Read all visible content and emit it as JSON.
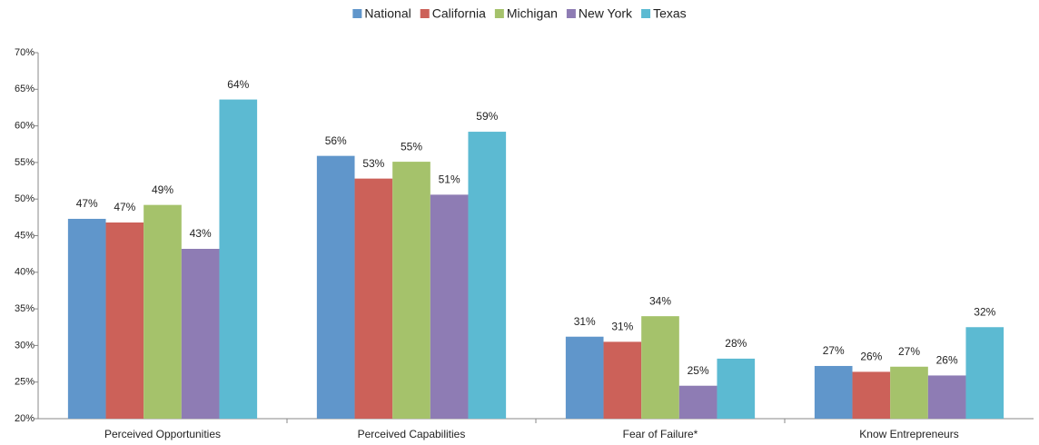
{
  "chart_data": {
    "type": "bar",
    "categories": [
      "Perceived Opportunities",
      "Perceived Capabilities",
      "Fear of Failure*",
      "Know Entrepreneurs"
    ],
    "series": [
      {
        "name": "National",
        "color": "#6096cb",
        "values": [
          47.3,
          55.9,
          31.2,
          27.2
        ],
        "value_labels": [
          "47%",
          "56%",
          "31%",
          "27%"
        ]
      },
      {
        "name": "California",
        "color": "#cc6159",
        "values": [
          46.8,
          52.8,
          30.5,
          26.4
        ],
        "value_labels": [
          "47%",
          "53%",
          "31%",
          "26%"
        ]
      },
      {
        "name": "Michigan",
        "color": "#a5c26b",
        "values": [
          49.2,
          55.1,
          34.0,
          27.1
        ],
        "value_labels": [
          "49%",
          "55%",
          "34%",
          "27%"
        ]
      },
      {
        "name": "New York",
        "color": "#8e7cb4",
        "values": [
          43.2,
          50.6,
          24.5,
          25.9
        ],
        "value_labels": [
          "43%",
          "51%",
          "25%",
          "26%"
        ]
      },
      {
        "name": "Texas",
        "color": "#5cbad2",
        "values": [
          63.6,
          59.2,
          28.2,
          32.5
        ],
        "value_labels": [
          "64%",
          "59%",
          "28%",
          "32%"
        ]
      }
    ],
    "ylim": [
      20,
      70
    ],
    "yticks": [
      {
        "value": 20,
        "label": "20%"
      },
      {
        "value": 25,
        "label": "25%"
      },
      {
        "value": 30,
        "label": "30%"
      },
      {
        "value": 35,
        "label": "35%"
      },
      {
        "value": 40,
        "label": "40%"
      },
      {
        "value": 45,
        "label": "45%"
      },
      {
        "value": 50,
        "label": "50%"
      },
      {
        "value": 55,
        "label": "55%"
      },
      {
        "value": 60,
        "label": "60%"
      },
      {
        "value": 65,
        "label": "65%"
      },
      {
        "value": 70,
        "label": "70%"
      }
    ],
    "grid": false,
    "legend": "top"
  }
}
